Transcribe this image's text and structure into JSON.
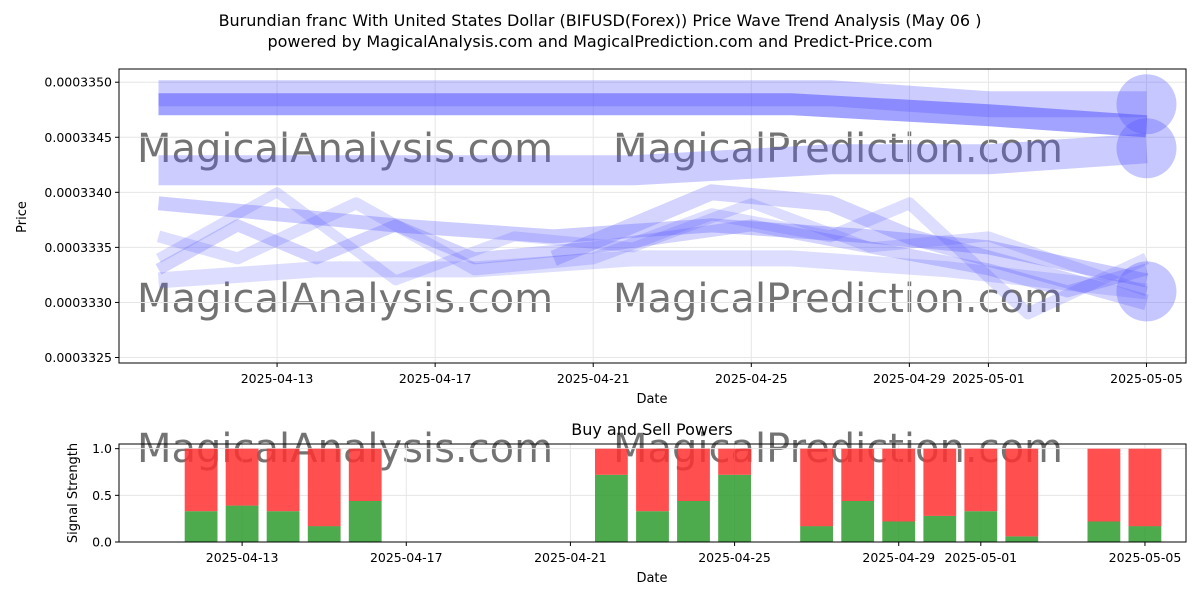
{
  "title": "Burundian franc With United States Dollar (BIFUSD(Forex)) Price Wave Trend Analysis (May 06 )",
  "subtitle": "powered by MagicalAnalysis.com and MagicalPrediction.com and Predict-Price.com",
  "watermarks": [
    "MagicalAnalysis.com",
    "MagicalPrediction.com"
  ],
  "colors": {
    "wave": "#5555ff",
    "buy": "#2e9b2e",
    "sell": "#ff3030"
  },
  "chart_data": [
    {
      "type": "line",
      "xlabel": "Date",
      "ylabel": "Price",
      "x_ticks": [
        "2025-04-13",
        "2025-04-17",
        "2025-04-21",
        "2025-04-25",
        "2025-04-29",
        "2025-05-01",
        "2025-05-05"
      ],
      "y_ticks": [
        "0.0003325",
        "0.0003330",
        "0.0003335",
        "0.0003340",
        "0.0003345",
        "0.0003350"
      ],
      "xlim": [
        "2025-04-09",
        "2025-05-06"
      ],
      "ylim": [
        0.00033245,
        0.00033512
      ],
      "grid": true,
      "series": [
        {
          "x": [
            "2025-04-10",
            "2025-04-15",
            "2025-04-20",
            "2025-04-26",
            "2025-05-01",
            "2025-05-05"
          ],
          "y": [
            0.0003348,
            0.0003348,
            0.0003348,
            0.0003348,
            0.0003347,
            0.0003346
          ],
          "width": 22,
          "opacity": 0.55
        },
        {
          "x": [
            "2025-04-10",
            "2025-04-16",
            "2025-04-22",
            "2025-04-27",
            "2025-05-01",
            "2025-05-05"
          ],
          "y": [
            0.0003349,
            0.0003349,
            0.0003349,
            0.0003349,
            0.0003348,
            0.0003348
          ],
          "width": 26,
          "opacity": 0.3
        },
        {
          "x": [
            "2025-04-10",
            "2025-04-16",
            "2025-04-22",
            "2025-04-27",
            "2025-05-01",
            "2025-05-05"
          ],
          "y": [
            0.0003342,
            0.0003342,
            0.0003342,
            0.0003343,
            0.0003343,
            0.0003344
          ],
          "width": 30,
          "opacity": 0.3
        },
        {
          "x": [
            "2025-04-10",
            "2025-04-13",
            "2025-04-16",
            "2025-04-20",
            "2025-04-24",
            "2025-04-28",
            "2025-05-01",
            "2025-05-05"
          ],
          "y": [
            0.0003339,
            0.0003338,
            0.0003337,
            0.0003336,
            0.0003337,
            0.0003336,
            0.0003335,
            0.0003332
          ],
          "width": 14,
          "opacity": 0.3
        },
        {
          "x": [
            "2025-04-10",
            "2025-04-12",
            "2025-04-14",
            "2025-04-16",
            "2025-04-18",
            "2025-04-21",
            "2025-04-23",
            "2025-04-25",
            "2025-04-28",
            "2025-05-01",
            "2025-05-03",
            "2025-05-05"
          ],
          "y": [
            0.0003333,
            0.0003337,
            0.0003334,
            0.0003337,
            0.0003334,
            0.0003335,
            0.0003336,
            0.0003337,
            0.0003335,
            0.0003333,
            0.0003331,
            0.0003333
          ],
          "width": 12,
          "opacity": 0.25
        },
        {
          "x": [
            "2025-04-10",
            "2025-04-13",
            "2025-04-16",
            "2025-04-19",
            "2025-04-22",
            "2025-04-25",
            "2025-04-28",
            "2025-05-01",
            "2025-05-05"
          ],
          "y": [
            0.0003334,
            0.000334,
            0.0003332,
            0.0003336,
            0.0003335,
            0.0003339,
            0.0003335,
            0.0003336,
            0.0003331
          ],
          "width": 10,
          "opacity": 0.2
        },
        {
          "x": [
            "2025-04-10",
            "2025-04-12",
            "2025-04-15",
            "2025-04-18",
            "2025-04-21",
            "2025-04-24",
            "2025-04-27",
            "2025-04-29",
            "2025-05-02",
            "2025-05-05"
          ],
          "y": [
            0.0003336,
            0.0003334,
            0.0003339,
            0.0003333,
            0.0003334,
            0.0003338,
            0.0003336,
            0.0003339,
            0.0003329,
            0.0003334
          ],
          "width": 12,
          "opacity": 0.2
        },
        {
          "x": [
            "2025-04-10",
            "2025-04-14",
            "2025-04-18",
            "2025-04-22",
            "2025-04-26",
            "2025-04-30",
            "2025-05-05"
          ],
          "y": [
            0.0003332,
            0.0003333,
            0.0003333,
            0.0003334,
            0.0003334,
            0.0003333,
            0.0003331
          ],
          "width": 16,
          "opacity": 0.2
        },
        {
          "x": [
            "2025-04-20",
            "2025-04-22",
            "2025-04-24",
            "2025-04-27",
            "2025-04-29",
            "2025-05-01",
            "2025-05-03",
            "2025-05-05"
          ],
          "y": [
            0.0003334,
            0.0003337,
            0.000334,
            0.0003339,
            0.0003336,
            0.0003334,
            0.0003332,
            0.000333
          ],
          "width": 16,
          "opacity": 0.25
        }
      ],
      "endpoints": [
        {
          "x": "2025-05-05",
          "y": 0.0003348,
          "r": 30,
          "opacity": 0.55
        },
        {
          "x": "2025-05-05",
          "y": 0.0003344,
          "r": 30,
          "opacity": 0.55
        },
        {
          "x": "2025-05-05",
          "y": 0.0003331,
          "r": 30,
          "opacity": 0.55
        }
      ]
    },
    {
      "type": "bar",
      "title": "Buy and Sell Powers",
      "xlabel": "Date",
      "ylabel": "Signal Strength",
      "x_ticks": [
        "2025-04-13",
        "2025-04-17",
        "2025-04-21",
        "2025-04-25",
        "2025-04-29",
        "2025-05-01",
        "2025-05-05"
      ],
      "y_ticks": [
        "0.0",
        "0.5",
        "1.0"
      ],
      "xlim": [
        "2025-04-10",
        "2025-05-06"
      ],
      "ylim": [
        0,
        1.05
      ],
      "grid": true,
      "categories": [
        "2025-04-12",
        "2025-04-13",
        "2025-04-14",
        "2025-04-15",
        "2025-04-16",
        "2025-04-22",
        "2025-04-23",
        "2025-04-24",
        "2025-04-25",
        "2025-04-27",
        "2025-04-28",
        "2025-04-29",
        "2025-04-30",
        "2025-05-01",
        "2025-05-02",
        "2025-05-04",
        "2025-05-05"
      ],
      "series": [
        {
          "values": [
            0.33,
            0.39,
            0.33,
            0.17,
            0.44,
            0.72,
            0.33,
            0.44,
            0.72,
            0.17,
            0.44,
            0.22,
            0.28,
            0.33,
            0.06,
            0.22,
            0.17
          ]
        },
        {
          "values": [
            0.67,
            0.61,
            0.67,
            0.83,
            0.56,
            0.28,
            0.67,
            0.56,
            0.28,
            0.83,
            0.56,
            0.78,
            0.72,
            0.67,
            0.94,
            0.78,
            0.83
          ]
        }
      ]
    }
  ]
}
